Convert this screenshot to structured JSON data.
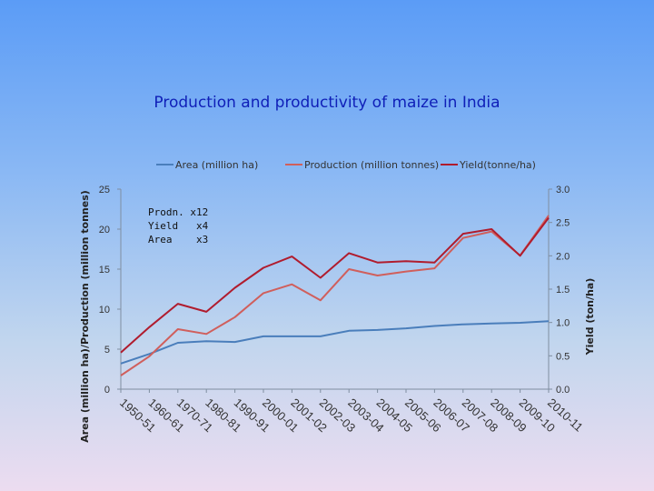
{
  "slide": {
    "title": "Production and productivity of maize in India"
  },
  "chart_data": {
    "type": "line",
    "categories": [
      "1950-51",
      "1960-61",
      "1970-71",
      "1980-81",
      "1990-91",
      "2000-01",
      "2001-02",
      "2002-03",
      "2003-04",
      "2004-05",
      "2005-06",
      "2006-07",
      "2007-08",
      "2008-09",
      "2009-10",
      "2010-11"
    ],
    "ylabel": "Area (million ha)/Production (million tonnes)",
    "y2label": "Yield (ton/ha)",
    "ylim": [
      0,
      25
    ],
    "y2lim": [
      0,
      3.0
    ],
    "yticks": [
      "0",
      "5",
      "10",
      "15",
      "20",
      "25"
    ],
    "y2ticks": [
      "0.0",
      "0.5",
      "1.0",
      "1.5",
      "2.0",
      "2.5",
      "3.0"
    ],
    "legend_position": "top",
    "note_lines": [
      "Prodn. x12",
      "Yield   x4",
      "Area    x3"
    ],
    "series": [
      {
        "name": "Area (million ha)",
        "axis": "left",
        "color": "#4a7ebb",
        "values": [
          3.2,
          4.4,
          5.8,
          6.0,
          5.9,
          6.6,
          6.6,
          6.6,
          7.3,
          7.4,
          7.6,
          7.9,
          8.1,
          8.2,
          8.3,
          8.5
        ]
      },
      {
        "name": "Production (million tonnes)",
        "axis": "left",
        "color": "#d05f5c",
        "values": [
          1.7,
          4.1,
          7.5,
          6.9,
          9.0,
          12.0,
          13.1,
          11.1,
          15.0,
          14.2,
          14.7,
          15.1,
          18.9,
          19.7,
          16.7,
          21.7
        ]
      },
      {
        "name": "Yield(tonne/ha)",
        "axis": "right",
        "color": "#b01c2e",
        "values": [
          0.55,
          0.93,
          1.28,
          1.16,
          1.52,
          1.82,
          1.99,
          1.67,
          2.04,
          1.9,
          1.92,
          1.9,
          2.33,
          2.4,
          2.0,
          2.57
        ]
      }
    ]
  }
}
